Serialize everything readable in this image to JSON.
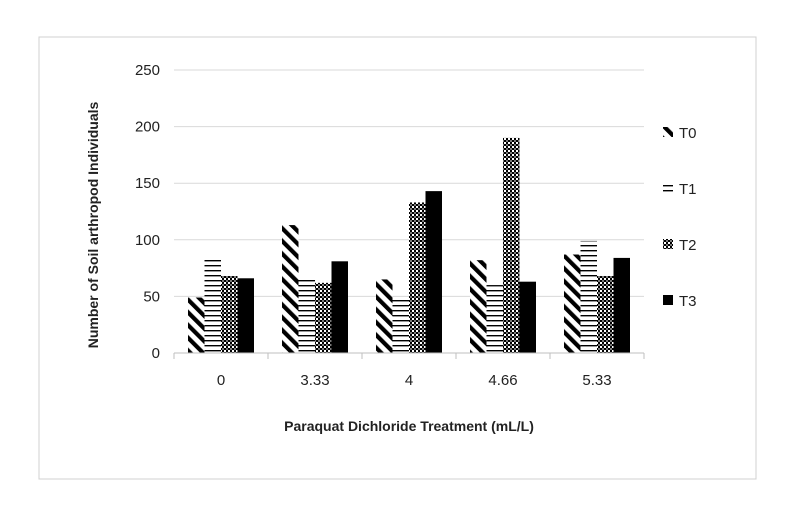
{
  "chart_data": {
    "type": "bar",
    "categories": [
      "0",
      "3.33",
      "4",
      "4.66",
      "5.33"
    ],
    "series": [
      {
        "name": "T0",
        "values": [
          49,
          113,
          65,
          82,
          87
        ],
        "pattern": "diagonal-hatch"
      },
      {
        "name": "T1",
        "values": [
          83,
          66,
          50,
          60,
          99
        ],
        "pattern": "horizontal-lines"
      },
      {
        "name": "T2",
        "values": [
          68,
          62,
          133,
          190,
          68
        ],
        "pattern": "crosshatch"
      },
      {
        "name": "T3",
        "values": [
          66,
          81,
          143,
          63,
          84
        ],
        "pattern": "solid"
      }
    ],
    "title": "",
    "xlabel": "Paraquat Dichloride Treatment (mL/L)",
    "ylabel": "Number of Soil arthropod Individuals",
    "ylim": [
      0,
      250
    ],
    "yticks": [
      "0",
      "50",
      "100",
      "150",
      "200",
      "250"
    ],
    "grid": true,
    "legend": "right",
    "colors": {
      "bar": "#000000",
      "grid": "#d9d9d9",
      "axis": "#bfbfbf",
      "frame": "#d0d0d0"
    }
  }
}
